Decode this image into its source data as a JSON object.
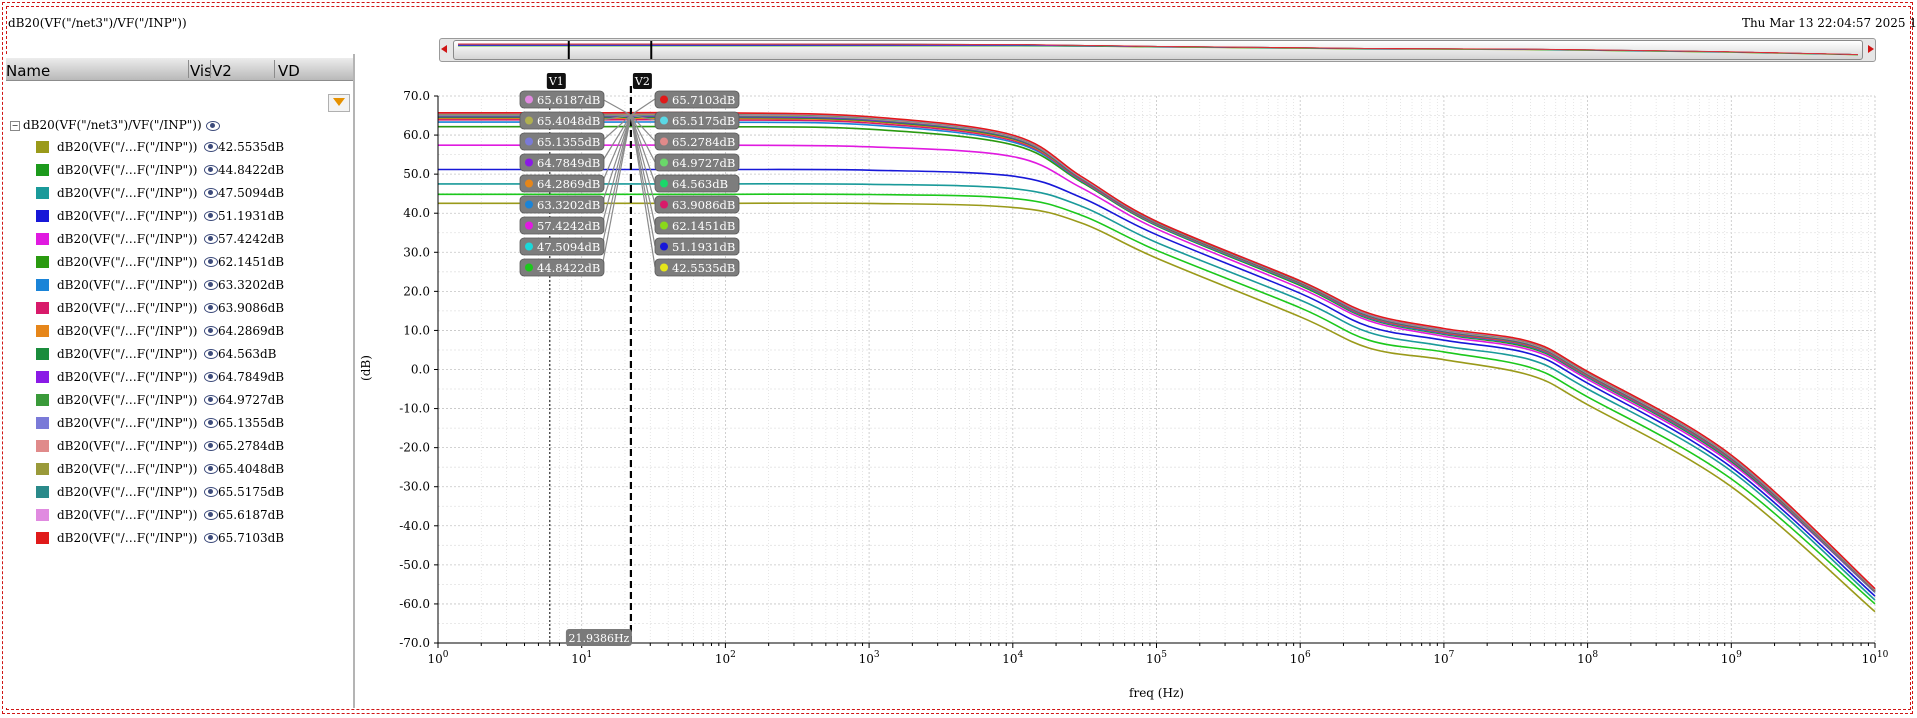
{
  "window": {
    "title": "dB20(VF(\"/net3\")/VF(\"/INP\"))",
    "date": "Thu Mar 13 22:04:57 2025   1"
  },
  "browser": {
    "columns": [
      "Name",
      "Vis",
      "V2",
      "VD"
    ],
    "root_label": "dB20(VF(\"/net3\")/VF(\"/INP\"))",
    "rows": [
      {
        "name": "dB20(VF(\"/…F(\"/INP\"))",
        "value": "42.5535dB",
        "color": "#9a9a1a"
      },
      {
        "name": "dB20(VF(\"/…F(\"/INP\"))",
        "value": "44.8422dB",
        "color": "#1c9a1c"
      },
      {
        "name": "dB20(VF(\"/…F(\"/INP\"))",
        "value": "47.5094dB",
        "color": "#1a9a9a"
      },
      {
        "name": "dB20(VF(\"/…F(\"/INP\"))",
        "value": "51.1931dB",
        "color": "#1818d8"
      },
      {
        "name": "dB20(VF(\"/…F(\"/INP\"))",
        "value": "57.4242dB",
        "color": "#e01ae0"
      },
      {
        "name": "dB20(VF(\"/…F(\"/INP\"))",
        "value": "62.1451dB",
        "color": "#2a9a10"
      },
      {
        "name": "dB20(VF(\"/…F(\"/INP\"))",
        "value": "63.3202dB",
        "color": "#1a84d8"
      },
      {
        "name": "dB20(VF(\"/…F(\"/INP\"))",
        "value": "63.9086dB",
        "color": "#d81a6a"
      },
      {
        "name": "dB20(VF(\"/…F(\"/INP\"))",
        "value": "64.2869dB",
        "color": "#e6861a"
      },
      {
        "name": "dB20(VF(\"/…F(\"/INP\"))",
        "value": "64.563dB",
        "color": "#1a8c3c"
      },
      {
        "name": "dB20(VF(\"/…F(\"/INP\"))",
        "value": "64.7849dB",
        "color": "#8a1ae6"
      },
      {
        "name": "dB20(VF(\"/…F(\"/INP\"))",
        "value": "64.9727dB",
        "color": "#3a9a3a"
      },
      {
        "name": "dB20(VF(\"/…F(\"/INP\"))",
        "value": "65.1355dB",
        "color": "#7a7ad8"
      },
      {
        "name": "dB20(VF(\"/…F(\"/INP\"))",
        "value": "65.2784dB",
        "color": "#e08a8a"
      },
      {
        "name": "dB20(VF(\"/…F(\"/INP\"))",
        "value": "65.4048dB",
        "color": "#9a9a3a"
      },
      {
        "name": "dB20(VF(\"/…F(\"/INP\"))",
        "value": "65.5175dB",
        "color": "#2a8a8a"
      },
      {
        "name": "dB20(VF(\"/…F(\"/INP\"))",
        "value": "65.6187dB",
        "color": "#e08ae0"
      },
      {
        "name": "dB20(VF(\"/…F(\"/INP\"))",
        "value": "65.7103dB",
        "color": "#e01a1a"
      }
    ]
  },
  "markers": {
    "v1_label": "V1",
    "v2_label": "V2",
    "delta_freq": "21.9386Hz",
    "v1_tags": [
      {
        "text": "65.6187dB",
        "color": "#e08ae0"
      },
      {
        "text": "65.4048dB",
        "color": "#b0b050"
      },
      {
        "text": "65.1355dB",
        "color": "#7a7ad8"
      },
      {
        "text": "64.7849dB",
        "color": "#8a1ae6"
      },
      {
        "text": "64.2869dB",
        "color": "#e6861a"
      },
      {
        "text": "63.3202dB",
        "color": "#1a84d8"
      },
      {
        "text": "57.4242dB",
        "color": "#e01ae0"
      },
      {
        "text": "47.5094dB",
        "color": "#1ad8d8"
      },
      {
        "text": "44.8422dB",
        "color": "#1cc81c"
      }
    ],
    "v2_tags": [
      {
        "text": "65.7103dB",
        "color": "#e01a1a"
      },
      {
        "text": "65.5175dB",
        "color": "#5ad8e6"
      },
      {
        "text": "65.2784dB",
        "color": "#e08a8a"
      },
      {
        "text": "64.9727dB",
        "color": "#6ad86a"
      },
      {
        "text": "64.563dB",
        "color": "#1ad86a"
      },
      {
        "text": "63.9086dB",
        "color": "#d81a6a"
      },
      {
        "text": "62.1451dB",
        "color": "#8ad81a"
      },
      {
        "text": "51.1931dB",
        "color": "#1818d8"
      },
      {
        "text": "42.5535dB",
        "color": "#e6e61a"
      }
    ]
  },
  "chart_data": {
    "type": "line",
    "xlabel": "freq (Hz)",
    "ylabel": "(dB)",
    "xscale": "log",
    "xlim": [
      1,
      10000000000
    ],
    "ylim": [
      -70,
      70
    ],
    "grid": true,
    "x_ticks": [
      "10^0",
      "10^1",
      "10^2",
      "10^3",
      "10^4",
      "10^5",
      "10^6",
      "10^7",
      "10^8",
      "10^9",
      "10^10"
    ],
    "y_ticks": [
      "70.0",
      "60.0",
      "50.0",
      "40.0",
      "30.0",
      "20.0",
      "10.0",
      "0.0",
      "-10.0",
      "-20.0",
      "-30.0",
      "-40.0",
      "-50.0",
      "-60.0",
      "-70.0"
    ],
    "x": [
      1,
      10,
      100,
      1000,
      10000,
      30000,
      100000,
      1000000,
      3000000,
      10000000,
      40000000,
      100000000,
      1000000000,
      10000000000
    ],
    "series": [
      {
        "color": "#9a9a1a",
        "values": [
          42.55,
          42.55,
          42.55,
          42.5,
          41.5,
          37.5,
          28.5,
          13.5,
          5.5,
          2.5,
          -1.5,
          -9,
          -30,
          -62
        ]
      },
      {
        "color": "#1cc81c",
        "values": [
          44.84,
          44.84,
          44.84,
          44.8,
          43.8,
          39.5,
          30.5,
          15.8,
          7.5,
          4.5,
          0.5,
          -7,
          -28,
          -60
        ]
      },
      {
        "color": "#1a9a9a",
        "values": [
          47.51,
          47.51,
          47.51,
          47.4,
          46.3,
          41.8,
          32.5,
          17.8,
          9.5,
          6.0,
          2.5,
          -5,
          -26,
          -59
        ]
      },
      {
        "color": "#1818d8",
        "values": [
          51.19,
          51.19,
          51.19,
          51.0,
          49.5,
          44.0,
          34.5,
          19.5,
          11.0,
          7.5,
          4.0,
          -3.5,
          -25,
          -58
        ]
      },
      {
        "color": "#e01ae0",
        "values": [
          57.42,
          57.42,
          57.42,
          57.0,
          54.5,
          46.5,
          36.0,
          20.8,
          12.5,
          8.5,
          5.0,
          -2.5,
          -24,
          -57
        ]
      },
      {
        "color": "#2a9a10",
        "values": [
          62.15,
          62.15,
          62.14,
          61.5,
          57.5,
          48.0,
          36.8,
          21.5,
          13.0,
          9.0,
          5.5,
          -2,
          -23.5,
          -57
        ]
      },
      {
        "color": "#1a84d8",
        "values": [
          63.32,
          63.32,
          63.3,
          62.6,
          58.2,
          48.3,
          37.0,
          21.8,
          13.2,
          9.2,
          5.8,
          -1.8,
          -23.2,
          -57
        ]
      },
      {
        "color": "#d81a6a",
        "values": [
          63.91,
          63.91,
          63.89,
          63.1,
          58.6,
          48.5,
          37.2,
          22.0,
          13.4,
          9.4,
          6.0,
          -1.6,
          -23,
          -56.8
        ]
      },
      {
        "color": "#e6861a",
        "values": [
          64.29,
          64.29,
          64.27,
          63.5,
          58.9,
          48.7,
          37.3,
          22.1,
          13.6,
          9.6,
          6.2,
          -1.4,
          -22.8,
          -56.7
        ]
      },
      {
        "color": "#1a8c3c",
        "values": [
          64.56,
          64.56,
          64.54,
          63.7,
          59.1,
          48.8,
          37.4,
          22.2,
          13.7,
          9.7,
          6.3,
          -1.3,
          -22.7,
          -56.6
        ]
      },
      {
        "color": "#8a1ae6",
        "values": [
          64.78,
          64.78,
          64.76,
          63.9,
          59.3,
          48.9,
          37.5,
          22.3,
          13.8,
          9.8,
          6.4,
          -1.2,
          -22.6,
          -56.5
        ]
      },
      {
        "color": "#3a9a3a",
        "values": [
          64.97,
          64.97,
          64.95,
          64.1,
          59.4,
          49.0,
          37.6,
          22.4,
          13.9,
          9.9,
          6.5,
          -1.1,
          -22.5,
          -56.5
        ]
      },
      {
        "color": "#7a7ad8",
        "values": [
          65.14,
          65.14,
          65.12,
          64.2,
          59.5,
          49.1,
          37.7,
          22.5,
          14.0,
          10.0,
          6.6,
          -1.0,
          -22.4,
          -56.4
        ]
      },
      {
        "color": "#e08a8a",
        "values": [
          65.28,
          65.28,
          65.26,
          64.3,
          59.6,
          49.2,
          37.7,
          22.5,
          14.1,
          10.1,
          6.7,
          -0.9,
          -22.3,
          -56.3
        ]
      },
      {
        "color": "#9a9a3a",
        "values": [
          65.4,
          65.4,
          65.38,
          64.4,
          59.7,
          49.2,
          37.8,
          22.6,
          14.2,
          10.2,
          6.8,
          -0.8,
          -22.2,
          -56.3
        ]
      },
      {
        "color": "#2a8a8a",
        "values": [
          65.52,
          65.52,
          65.5,
          64.5,
          59.8,
          49.3,
          37.8,
          22.6,
          14.2,
          10.3,
          6.9,
          -0.7,
          -22.1,
          -56.2
        ]
      },
      {
        "color": "#e08ae0",
        "values": [
          65.62,
          65.62,
          65.6,
          64.6,
          59.9,
          49.3,
          37.9,
          22.7,
          14.3,
          10.4,
          7.0,
          -0.6,
          -22.0,
          -56.2
        ]
      },
      {
        "color": "#e01a1a",
        "values": [
          65.71,
          65.71,
          65.69,
          64.7,
          60.0,
          49.4,
          37.9,
          22.7,
          14.4,
          10.5,
          7.1,
          -0.5,
          -21.9,
          -56.1
        ]
      }
    ]
  }
}
